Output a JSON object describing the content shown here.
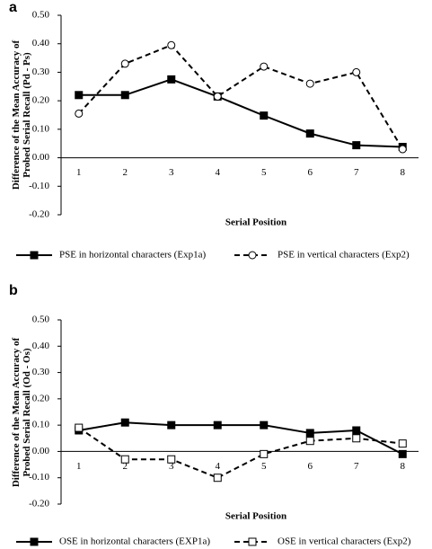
{
  "chart_data": [
    {
      "type": "line",
      "panel_label": "a",
      "y_label": "Difference of the Mean Accuracy of Probed Serial Recall (Pd - Ps)",
      "x_label": "Serial Position",
      "categories": [
        "1",
        "2",
        "3",
        "4",
        "5",
        "6",
        "7",
        "8"
      ],
      "ylim": [
        -0.2,
        0.5
      ],
      "yticks": [
        {
          "value": -0.2,
          "label": "-0.20"
        },
        {
          "value": -0.1,
          "label": "-0.10"
        },
        {
          "value": 0,
          "label": "0.00"
        },
        {
          "value": 0.1,
          "label": "0.10"
        },
        {
          "value": 0.2,
          "label": "0.20"
        },
        {
          "value": 0.3,
          "label": "0.30"
        },
        {
          "value": 0.4,
          "label": "0.40"
        },
        {
          "value": 0.5,
          "label": "0.50"
        }
      ],
      "series": [
        {
          "name": "PSE in horizontal characters (Exp1a)",
          "color": "#000000",
          "dash": false,
          "marker": "square-filled",
          "values": [
            0.22,
            0.22,
            0.275,
            0.215,
            0.148,
            0.085,
            0.044,
            0.038
          ]
        },
        {
          "name": "PSE in vertical characters (Exp2)",
          "color": "#000000",
          "dash": true,
          "marker": "circle-open",
          "values": [
            0.155,
            0.33,
            0.395,
            0.215,
            0.32,
            0.26,
            0.3,
            0.03
          ]
        }
      ]
    },
    {
      "type": "line",
      "panel_label": "b",
      "y_label": "Difference of the Mean Accuracy of Probed Serial Recall (Od - Os)",
      "x_label": "Serial Position",
      "categories": [
        "1",
        "2",
        "3",
        "4",
        "5",
        "6",
        "7",
        "8"
      ],
      "ylim": [
        -0.2,
        0.5
      ],
      "yticks": [
        {
          "value": -0.2,
          "label": "-0.20"
        },
        {
          "value": -0.1,
          "label": "-0.10"
        },
        {
          "value": 0,
          "label": "0.00"
        },
        {
          "value": 0.1,
          "label": "0.10"
        },
        {
          "value": 0.2,
          "label": "0.20"
        },
        {
          "value": 0.3,
          "label": "0.30"
        },
        {
          "value": 0.4,
          "label": "0.40"
        },
        {
          "value": 0.5,
          "label": "0.50"
        }
      ],
      "series": [
        {
          "name": "OSE in horizontal characters (EXP1a)",
          "color": "#000000",
          "dash": false,
          "marker": "square-filled",
          "values": [
            0.08,
            0.11,
            0.1,
            0.1,
            0.1,
            0.07,
            0.08,
            -0.01
          ]
        },
        {
          "name": "OSE in vertical characters (Exp2)",
          "color": "#000000",
          "dash": true,
          "marker": "square-open",
          "values": [
            0.09,
            -0.03,
            -0.03,
            -0.1,
            -0.01,
            0.04,
            0.05,
            0.03
          ]
        }
      ]
    }
  ]
}
